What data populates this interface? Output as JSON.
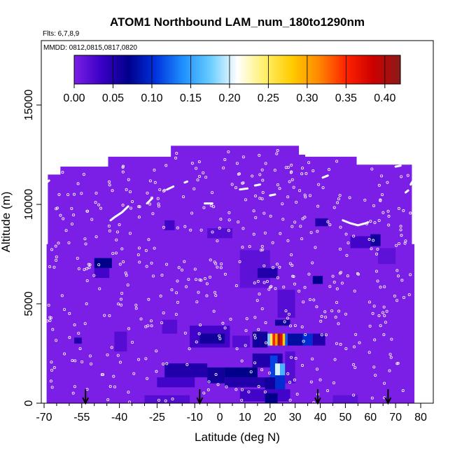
{
  "chart_data": {
    "type": "heatmap",
    "title": "ATOM1 Northbound LAM_num_180to1290nm",
    "subtitle_flights": "Flts: 6,7,8,9",
    "subtitle_dates": "MMDD: 0812,0815,0817,0820",
    "xlabel": "Latitude (deg N)",
    "ylabel": "Altitude (m)",
    "xlim": [
      -70,
      82
    ],
    "ylim": [
      0,
      17500
    ],
    "xticks": [
      -70,
      -55,
      -40,
      -25,
      -10,
      0,
      10,
      20,
      30,
      40,
      50,
      60,
      70,
      80
    ],
    "xtick_labels": [
      "-70",
      "-55",
      "-40",
      "-25",
      "-10",
      "0",
      "10",
      "20",
      "30",
      "40",
      "50",
      "60",
      "70",
      "80"
    ],
    "yticks": [
      0,
      5000,
      10000,
      15000
    ],
    "ytick_labels": [
      "0",
      "5000",
      "10000",
      "15000"
    ],
    "colorbar": {
      "range": [
        0,
        0.42
      ],
      "ticks": [
        0.0,
        0.05,
        0.1,
        0.15,
        0.2,
        0.25,
        0.3,
        0.35,
        0.4
      ],
      "tick_labels": [
        "0.00",
        "0.05",
        "0.10",
        "0.15",
        "0.20",
        "0.25",
        "0.30",
        "0.35",
        "0.40"
      ],
      "colors": [
        "#7b1fe6",
        "#3a00c4",
        "#00008b",
        "#0033dd",
        "#1e90ff",
        "#66ccff",
        "#ffffff",
        "#fff06a",
        "#ffcc00",
        "#ff8800",
        "#ff2200",
        "#cc0000",
        "#8b1a1a"
      ]
    },
    "background_value": 0.0,
    "coverage_profile": [
      {
        "x": -70.0,
        "top": 0,
        "bottom": 0
      },
      {
        "x": -69.0,
        "top": 8000,
        "bottom": 0
      },
      {
        "x": -68.5,
        "top": 11500,
        "bottom": 0
      },
      {
        "x": -63.5,
        "top": 11900,
        "bottom": 0
      },
      {
        "x": -44.5,
        "top": 12400,
        "bottom": 0
      },
      {
        "x": -19.5,
        "top": 12950,
        "bottom": 0
      },
      {
        "x": 31.5,
        "top": 12500,
        "bottom": 0
      },
      {
        "x": 34.0,
        "top": 12400,
        "bottom": 0
      },
      {
        "x": 54.5,
        "top": 12000,
        "bottom": 0
      },
      {
        "x": 63.5,
        "top": 12000,
        "bottom": 0
      },
      {
        "x": 76.5,
        "top": 8000,
        "bottom": 0
      },
      {
        "x": 77.5,
        "top": 8000,
        "bottom": 0
      }
    ],
    "cells": [
      {
        "x0": -50,
        "x1": -43,
        "y0": 6800,
        "y1": 7300,
        "v": 0.07
      },
      {
        "x0": -50,
        "x1": -44,
        "y0": 6300,
        "y1": 6800,
        "v": 0.03
      },
      {
        "x0": -58,
        "x1": -55,
        "y0": 3000,
        "y1": 3300,
        "v": 0.05
      },
      {
        "x0": -42,
        "x1": -37,
        "y0": 2600,
        "y1": 3600,
        "v": 0.02
      },
      {
        "x0": -22,
        "x1": -18,
        "y0": 8700,
        "y1": 9200,
        "v": 0.03
      },
      {
        "x0": -23,
        "x1": -17,
        "y0": 3500,
        "y1": 4200,
        "v": 0.02
      },
      {
        "x0": -5,
        "x1": 5,
        "y0": 8300,
        "y1": 8800,
        "v": 0.02
      },
      {
        "x0": 8,
        "x1": 20,
        "y0": 5800,
        "y1": 7700,
        "v": 0.015
      },
      {
        "x0": 15,
        "x1": 23,
        "y0": 6300,
        "y1": 6800,
        "v": 0.05
      },
      {
        "x0": 22,
        "x1": 28,
        "y0": 3900,
        "y1": 4200,
        "v": 0.06
      },
      {
        "x0": 23,
        "x1": 30,
        "y0": 4300,
        "y1": 5700,
        "v": 0.02
      },
      {
        "x0": 37,
        "x1": 41,
        "y0": 6000,
        "y1": 6400,
        "v": 0.07
      },
      {
        "x0": 38,
        "x1": 43,
        "y0": 8900,
        "y1": 9300,
        "v": 0.05
      },
      {
        "x0": 52,
        "x1": 60,
        "y0": 7800,
        "y1": 8400,
        "v": 0.03
      },
      {
        "x0": 60,
        "x1": 64,
        "y0": 7900,
        "y1": 8500,
        "v": 0.06
      },
      {
        "x0": 63,
        "x1": 70,
        "y0": 7000,
        "y1": 7800,
        "v": 0.015
      },
      {
        "x0": -12,
        "x1": 4,
        "y0": 2800,
        "y1": 3900,
        "v": 0.03
      },
      {
        "x0": -8,
        "x1": 2,
        "y0": 3000,
        "y1": 3500,
        "v": 0.06
      },
      {
        "x0": 5,
        "x1": 12,
        "y0": 2800,
        "y1": 3400,
        "v": 0.02
      },
      {
        "x0": 13,
        "x1": 19,
        "y0": 2800,
        "y1": 3600,
        "v": 0.06
      },
      {
        "x0": 19,
        "x1": 20,
        "y0": 2900,
        "y1": 3500,
        "v": 0.18
      },
      {
        "x0": 20,
        "x1": 21,
        "y0": 2900,
        "y1": 3500,
        "v": 0.25
      },
      {
        "x0": 21,
        "x1": 22,
        "y0": 2900,
        "y1": 3500,
        "v": 0.35
      },
      {
        "x0": 22,
        "x1": 23,
        "y0": 2900,
        "y1": 3500,
        "v": 0.3
      },
      {
        "x0": 23,
        "x1": 24,
        "y0": 2900,
        "y1": 3500,
        "v": 0.41
      },
      {
        "x0": 24,
        "x1": 25,
        "y0": 2900,
        "y1": 3500,
        "v": 0.37
      },
      {
        "x0": 25,
        "x1": 26,
        "y0": 2900,
        "y1": 3500,
        "v": 0.28
      },
      {
        "x0": 26,
        "x1": 27,
        "y0": 2900,
        "y1": 3500,
        "v": 0.12
      },
      {
        "x0": 27,
        "x1": 33,
        "y0": 2900,
        "y1": 3500,
        "v": 0.08
      },
      {
        "x0": 33,
        "x1": 37,
        "y0": 2900,
        "y1": 3500,
        "v": 0.1
      },
      {
        "x0": 37,
        "x1": 42,
        "y0": 2900,
        "y1": 3500,
        "v": 0.05
      },
      {
        "x0": -25,
        "x1": -10,
        "y0": 800,
        "y1": 1300,
        "v": 0.03
      },
      {
        "x0": -22,
        "x1": -5,
        "y0": 1300,
        "y1": 2000,
        "v": 0.05
      },
      {
        "x0": -5,
        "x1": 2,
        "y0": 1000,
        "y1": 1800,
        "v": 0.06
      },
      {
        "x0": 2,
        "x1": 15,
        "y0": 1300,
        "y1": 1800,
        "v": 0.07
      },
      {
        "x0": 2,
        "x1": 22,
        "y0": 800,
        "y1": 1300,
        "v": 0.05
      },
      {
        "x0": 13,
        "x1": 25,
        "y0": 1800,
        "y1": 2500,
        "v": 0.05
      },
      {
        "x0": 20,
        "x1": 23,
        "y0": 1300,
        "y1": 2400,
        "v": 0.11
      },
      {
        "x0": 22,
        "x1": 24,
        "y0": 1400,
        "y1": 2000,
        "v": 0.2
      },
      {
        "x0": 24,
        "x1": 26,
        "y0": 1400,
        "y1": 2000,
        "v": 0.16
      },
      {
        "x0": 22,
        "x1": 26,
        "y0": 600,
        "y1": 1400,
        "v": 0.1
      },
      {
        "x0": 18,
        "x1": 22,
        "y0": 600,
        "y1": 1300,
        "v": 0.06
      },
      {
        "x0": 26,
        "x1": 30,
        "y0": 1000,
        "y1": 2600,
        "v": 0.02
      },
      {
        "x0": 8,
        "x1": 28,
        "y0": 100,
        "y1": 700,
        "v": 0.03
      },
      {
        "x0": 18,
        "x1": 23,
        "y0": 0,
        "y1": 500,
        "v": 0.07
      },
      {
        "x0": -30,
        "x1": -12,
        "y0": 0,
        "y1": 400,
        "v": 0.02
      },
      {
        "x0": 45,
        "x1": 55,
        "y0": 0,
        "y1": 400,
        "v": 0.015
      }
    ],
    "flight_track_segments": [
      [
        [
          -70,
          10600
        ],
        [
          -69,
          11100
        ],
        [
          -68,
          11200
        ]
      ],
      [
        [
          -43.5,
          9200
        ],
        [
          -42,
          9350
        ],
        [
          -39,
          9600
        ],
        [
          -36.5,
          9900
        ]
      ],
      [
        [
          -29,
          10050
        ],
        [
          -27,
          10300
        ]
      ],
      [
        [
          -21,
          10750
        ],
        [
          -18.5,
          10900
        ]
      ],
      [
        [
          -14,
          11100
        ],
        [
          -13,
          11150
        ]
      ],
      [
        [
          -6,
          10050
        ],
        [
          -3,
          10050
        ]
      ],
      [
        [
          8,
          10750
        ],
        [
          11,
          10800
        ]
      ],
      [
        [
          14,
          10950
        ],
        [
          16,
          11000
        ]
      ],
      [
        [
          20,
          10450
        ],
        [
          22,
          10500
        ]
      ],
      [
        [
          41,
          11350
        ],
        [
          43,
          11450
        ]
      ],
      [
        [
          49,
          9200
        ],
        [
          52,
          9050
        ],
        [
          55,
          8950
        ],
        [
          58,
          9050
        ],
        [
          59,
          9100
        ]
      ],
      [
        [
          70,
          11900
        ],
        [
          72,
          11950
        ]
      ],
      [
        [
          74,
          10600
        ],
        [
          75,
          10700
        ]
      ],
      [
        [
          76,
          11000
        ],
        [
          77,
          11200
        ]
      ]
    ],
    "arrow_latitudes": [
      -53.5,
      -8,
      39,
      67
    ]
  }
}
